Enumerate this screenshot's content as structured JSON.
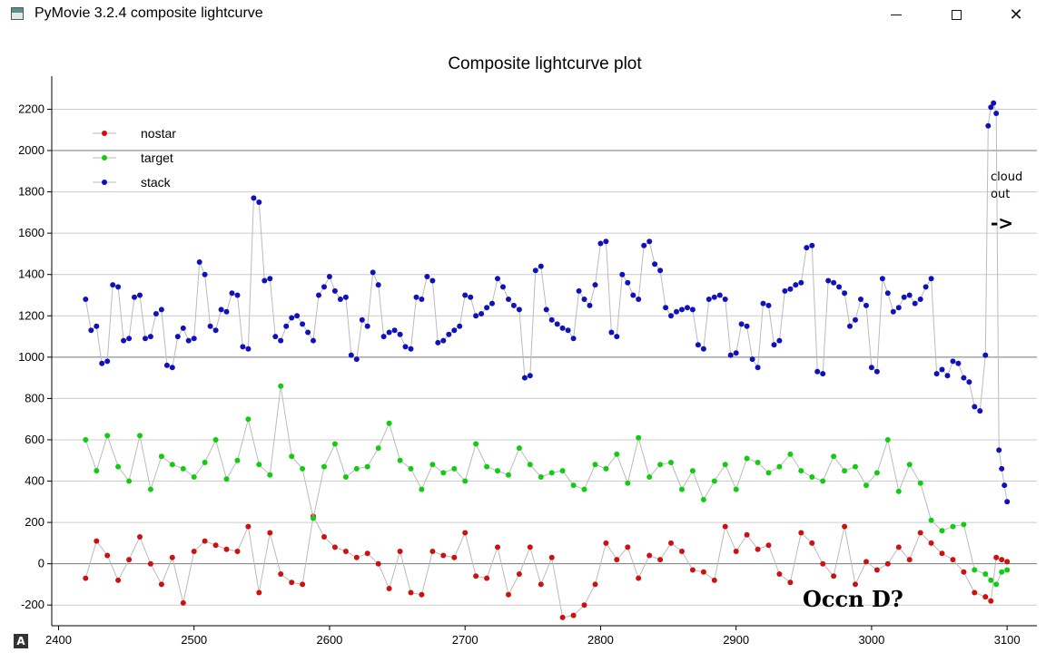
{
  "window": {
    "title": "PyMovie 3.2.4 composite lightcurve",
    "icons": {
      "app": "app-icon",
      "minimize": "minimize-icon",
      "maximize": "maximize-icon",
      "close": "close-icon"
    },
    "corner_badge": "A"
  },
  "annotations": {
    "cloud_line1": "cloud",
    "cloud_line2": "out",
    "arrow": "->",
    "occn": "Occn D?"
  },
  "chart_data": {
    "type": "scatter",
    "title": "Composite lightcurve plot",
    "xlabel": "",
    "ylabel": "",
    "xlim": [
      2395,
      3122
    ],
    "ylim": [
      -300,
      2360
    ],
    "xticks": [
      2400,
      2500,
      2600,
      2700,
      2800,
      2900,
      3000,
      3100
    ],
    "yticks": [
      -200,
      0,
      200,
      400,
      600,
      800,
      1000,
      1200,
      1400,
      1600,
      1800,
      2000,
      2200
    ],
    "grid": true,
    "connect_lines": true,
    "legend": {
      "placement": "top-left"
    },
    "colors": {
      "nostar": "#cc1111",
      "target": "#11cc11",
      "stack": "#1111bb",
      "connector": "#bbbbbb",
      "grid": "#cccccc"
    },
    "series": [
      {
        "name": "nostar",
        "x": [
          2420,
          2428,
          2436,
          2444,
          2452,
          2460,
          2468,
          2476,
          2484,
          2492,
          2500,
          2508,
          2516,
          2524,
          2532,
          2540,
          2548,
          2556,
          2564,
          2572,
          2580,
          2588,
          2596,
          2604,
          2612,
          2620,
          2628,
          2636,
          2644,
          2652,
          2660,
          2668,
          2676,
          2684,
          2692,
          2700,
          2708,
          2716,
          2724,
          2732,
          2740,
          2748,
          2756,
          2764,
          2772,
          2780,
          2788,
          2796,
          2804,
          2812,
          2820,
          2828,
          2836,
          2844,
          2852,
          2860,
          2868,
          2876,
          2884,
          2892,
          2900,
          2908,
          2916,
          2924,
          2932,
          2940,
          2948,
          2956,
          2964,
          2972,
          2980,
          2988,
          2996,
          3004,
          3012,
          3020,
          3028,
          3036,
          3044,
          3052,
          3060,
          3068,
          3076,
          3084,
          3088,
          3092,
          3096,
          3100
        ],
        "y": [
          -70,
          110,
          40,
          -80,
          20,
          130,
          0,
          -100,
          30,
          -190,
          60,
          110,
          90,
          70,
          60,
          180,
          -140,
          150,
          -50,
          -90,
          -100,
          230,
          130,
          80,
          60,
          30,
          50,
          0,
          -120,
          60,
          -140,
          -150,
          60,
          40,
          30,
          150,
          -60,
          -70,
          80,
          -150,
          -50,
          80,
          -100,
          30,
          -260,
          -250,
          -200,
          -100,
          100,
          20,
          80,
          -70,
          40,
          20,
          100,
          60,
          -30,
          -40,
          -80,
          180,
          60,
          140,
          70,
          90,
          -50,
          -90,
          150,
          100,
          0,
          -60,
          180,
          -100,
          10,
          -30,
          0,
          80,
          20,
          150,
          100,
          50,
          20,
          -40,
          -140,
          -160,
          -180,
          30,
          20,
          10
        ]
      },
      {
        "name": "target",
        "x": [
          2420,
          2428,
          2436,
          2444,
          2452,
          2460,
          2468,
          2476,
          2484,
          2492,
          2500,
          2508,
          2516,
          2524,
          2532,
          2540,
          2548,
          2556,
          2564,
          2572,
          2580,
          2588,
          2596,
          2604,
          2612,
          2620,
          2628,
          2636,
          2644,
          2652,
          2660,
          2668,
          2676,
          2684,
          2692,
          2700,
          2708,
          2716,
          2724,
          2732,
          2740,
          2748,
          2756,
          2764,
          2772,
          2780,
          2788,
          2796,
          2804,
          2812,
          2820,
          2828,
          2836,
          2844,
          2852,
          2860,
          2868,
          2876,
          2884,
          2892,
          2900,
          2908,
          2916,
          2924,
          2932,
          2940,
          2948,
          2956,
          2964,
          2972,
          2980,
          2988,
          2996,
          3004,
          3012,
          3020,
          3028,
          3036,
          3044,
          3052,
          3060,
          3068,
          3076,
          3084,
          3088,
          3092,
          3096,
          3100
        ],
        "y": [
          600,
          450,
          620,
          470,
          400,
          620,
          360,
          520,
          480,
          460,
          420,
          490,
          600,
          410,
          500,
          700,
          480,
          430,
          860,
          520,
          460,
          220,
          470,
          580,
          420,
          460,
          470,
          560,
          680,
          500,
          460,
          360,
          480,
          440,
          460,
          400,
          580,
          470,
          450,
          430,
          560,
          480,
          420,
          440,
          450,
          380,
          360,
          480,
          460,
          530,
          390,
          610,
          420,
          480,
          490,
          360,
          450,
          310,
          400,
          480,
          360,
          510,
          490,
          440,
          470,
          530,
          450,
          420,
          400,
          520,
          450,
          470,
          380,
          440,
          600,
          350,
          480,
          390,
          210,
          160,
          180,
          190,
          -30,
          -50,
          -80,
          -100,
          -40,
          -30
        ]
      },
      {
        "name": "stack",
        "x": [
          2420,
          2424,
          2428,
          2432,
          2436,
          2440,
          2444,
          2448,
          2452,
          2456,
          2460,
          2464,
          2468,
          2472,
          2476,
          2480,
          2484,
          2488,
          2492,
          2496,
          2500,
          2504,
          2508,
          2512,
          2516,
          2520,
          2524,
          2528,
          2532,
          2536,
          2540,
          2544,
          2548,
          2552,
          2556,
          2560,
          2564,
          2568,
          2572,
          2576,
          2580,
          2584,
          2588,
          2592,
          2596,
          2600,
          2604,
          2608,
          2612,
          2616,
          2620,
          2624,
          2628,
          2632,
          2636,
          2640,
          2644,
          2648,
          2652,
          2656,
          2660,
          2664,
          2668,
          2672,
          2676,
          2680,
          2684,
          2688,
          2692,
          2696,
          2700,
          2704,
          2708,
          2712,
          2716,
          2720,
          2724,
          2728,
          2732,
          2736,
          2740,
          2744,
          2748,
          2752,
          2756,
          2760,
          2764,
          2768,
          2772,
          2776,
          2780,
          2784,
          2788,
          2792,
          2796,
          2800,
          2804,
          2808,
          2812,
          2816,
          2820,
          2824,
          2828,
          2832,
          2836,
          2840,
          2844,
          2848,
          2852,
          2856,
          2860,
          2864,
          2868,
          2872,
          2876,
          2880,
          2884,
          2888,
          2892,
          2896,
          2900,
          2904,
          2908,
          2912,
          2916,
          2920,
          2924,
          2928,
          2932,
          2936,
          2940,
          2944,
          2948,
          2952,
          2956,
          2960,
          2964,
          2968,
          2972,
          2976,
          2980,
          2984,
          2988,
          2992,
          2996,
          3000,
          3004,
          3008,
          3012,
          3016,
          3020,
          3024,
          3028,
          3032,
          3036,
          3040,
          3044,
          3048,
          3052,
          3056,
          3060,
          3064,
          3068,
          3072,
          3076,
          3080,
          3084,
          3086,
          3088,
          3090,
          3092,
          3094,
          3096,
          3098,
          3100
        ],
        "y": [
          1280,
          1130,
          1150,
          970,
          980,
          1350,
          1340,
          1080,
          1090,
          1290,
          1300,
          1090,
          1100,
          1210,
          1230,
          960,
          950,
          1100,
          1140,
          1080,
          1090,
          1460,
          1400,
          1150,
          1130,
          1230,
          1220,
          1310,
          1300,
          1050,
          1040,
          1770,
          1750,
          1370,
          1380,
          1100,
          1080,
          1150,
          1190,
          1200,
          1160,
          1120,
          1080,
          1300,
          1340,
          1390,
          1320,
          1280,
          1290,
          1010,
          990,
          1180,
          1150,
          1410,
          1350,
          1100,
          1120,
          1130,
          1110,
          1050,
          1040,
          1290,
          1280,
          1390,
          1370,
          1070,
          1080,
          1110,
          1130,
          1150,
          1300,
          1290,
          1200,
          1210,
          1240,
          1260,
          1380,
          1340,
          1280,
          1250,
          1230,
          900,
          910,
          1420,
          1440,
          1230,
          1180,
          1160,
          1140,
          1130,
          1090,
          1320,
          1280,
          1250,
          1350,
          1550,
          1560,
          1120,
          1100,
          1400,
          1360,
          1300,
          1280,
          1540,
          1560,
          1450,
          1420,
          1240,
          1200,
          1220,
          1230,
          1240,
          1230,
          1060,
          1040,
          1280,
          1290,
          1300,
          1280,
          1010,
          1020,
          1160,
          1150,
          990,
          950,
          1260,
          1250,
          1060,
          1080,
          1320,
          1330,
          1350,
          1360,
          1530,
          1540,
          930,
          920,
          1370,
          1360,
          1340,
          1310,
          1150,
          1180,
          1280,
          1250,
          950,
          930,
          1380,
          1310,
          1220,
          1240,
          1290,
          1300,
          1260,
          1280,
          1340,
          1380,
          920,
          940,
          910,
          980,
          970,
          900,
          880,
          760,
          740,
          1010,
          2120,
          2210,
          2230,
          2180,
          550,
          460,
          380,
          300
        ],
        "connect_to_next": true
      }
    ]
  }
}
